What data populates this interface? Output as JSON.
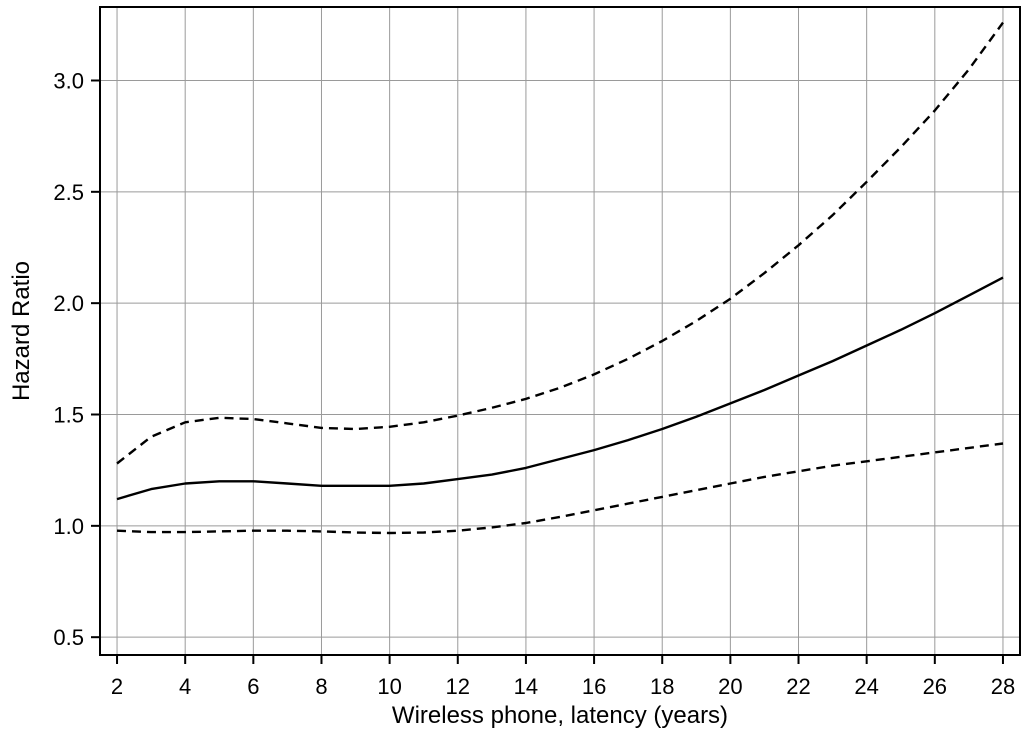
{
  "chart_data": {
    "type": "line",
    "title": "",
    "xlabel": "Wireless phone, latency (years)",
    "ylabel": "Hazard Ratio",
    "xlim": [
      1.5,
      28.5
    ],
    "ylim": [
      0.42,
      3.33
    ],
    "x_ticks": [
      2,
      4,
      6,
      8,
      10,
      12,
      14,
      16,
      18,
      20,
      22,
      24,
      26,
      28
    ],
    "y_ticks": [
      0.5,
      1.0,
      1.5,
      2.0,
      2.5,
      3.0
    ],
    "y_tick_labels": [
      "0.5",
      "1.0",
      "1.5",
      "2.0",
      "2.5",
      "3.0"
    ],
    "grid": true,
    "legend": "none",
    "line_color": "#000000",
    "x": [
      2,
      3,
      4,
      5,
      6,
      7,
      8,
      9,
      10,
      11,
      12,
      13,
      14,
      15,
      16,
      17,
      18,
      19,
      20,
      21,
      22,
      23,
      24,
      25,
      26,
      27,
      28
    ],
    "series": [
      {
        "style": "solid",
        "values": [
          1.12,
          1.165,
          1.19,
          1.2,
          1.2,
          1.19,
          1.18,
          1.18,
          1.18,
          1.19,
          1.21,
          1.23,
          1.26,
          1.3,
          1.34,
          1.385,
          1.435,
          1.49,
          1.55,
          1.61,
          1.675,
          1.74,
          1.81,
          1.88,
          1.955,
          2.035,
          2.115
        ]
      },
      {
        "style": "dashed",
        "values": [
          1.28,
          1.4,
          1.465,
          1.485,
          1.48,
          1.46,
          1.44,
          1.435,
          1.445,
          1.465,
          1.495,
          1.53,
          1.57,
          1.62,
          1.68,
          1.75,
          1.83,
          1.92,
          2.02,
          2.135,
          2.26,
          2.395,
          2.545,
          2.7,
          2.865,
          3.05,
          3.26
        ]
      },
      {
        "style": "dashed",
        "values": [
          0.978,
          0.972,
          0.972,
          0.975,
          0.978,
          0.978,
          0.975,
          0.97,
          0.968,
          0.97,
          0.978,
          0.993,
          1.013,
          1.04,
          1.07,
          1.1,
          1.13,
          1.16,
          1.19,
          1.22,
          1.245,
          1.27,
          1.29,
          1.31,
          1.33,
          1.35,
          1.37
        ]
      }
    ]
  }
}
